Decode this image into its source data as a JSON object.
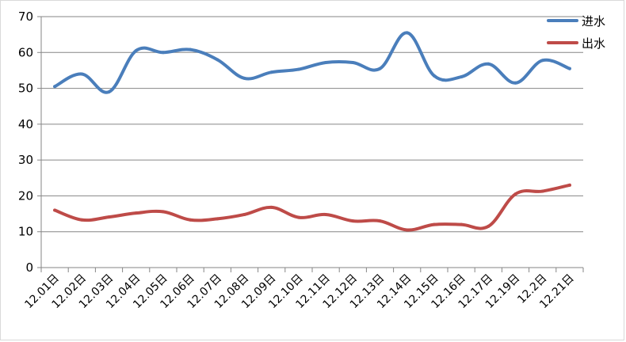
{
  "chart_data": {
    "type": "line",
    "categories": [
      "12.01日",
      "12.02日",
      "12.03日",
      "12.04日",
      "12.05日",
      "12.06日",
      "12.07日",
      "12.08日",
      "12.09日",
      "12.10日",
      "12.11日",
      "12.12日",
      "12.13日",
      "12.14日",
      "12.15日",
      "12.16日",
      "12.17日",
      "12.19日",
      "12.2日",
      "12.21日"
    ],
    "series": [
      {
        "name": "进水",
        "color": "#4a7ebb",
        "values": [
          50.5,
          54,
          49,
          60.5,
          60,
          60.8,
          58,
          52.8,
          54.5,
          55.3,
          57.2,
          57.2,
          55.5,
          65.5,
          53.5,
          53.2,
          56.8,
          51.5,
          57.8,
          55.5
        ]
      },
      {
        "name": "出水",
        "color": "#be4b48",
        "values": [
          16,
          13.3,
          14.1,
          15.2,
          15.6,
          13.3,
          13.6,
          14.8,
          16.8,
          14,
          14.8,
          13,
          13,
          10.5,
          12,
          12,
          11.5,
          20.5,
          21.3,
          23
        ]
      }
    ],
    "y_ticks": [
      "0",
      "10",
      "20",
      "30",
      "40",
      "50",
      "60",
      "70"
    ],
    "ylim": [
      0,
      70
    ],
    "grid": true,
    "legend_position": "top-right"
  }
}
